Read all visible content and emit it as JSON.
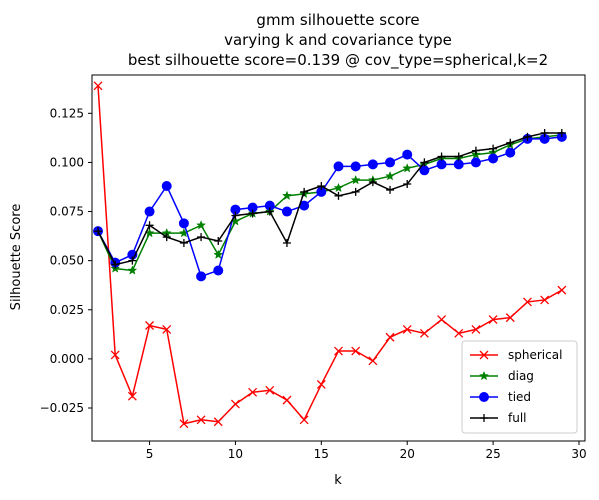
{
  "chart_data": {
    "type": "line",
    "title_lines": [
      "gmm silhouette score",
      "varying k and covariance type",
      "best silhouette score=0.139 @ cov_type=spherical,k=2"
    ],
    "xlabel": "k",
    "ylabel": "Silhouette Score",
    "xlim": [
      1.65,
      30.35
    ],
    "ylim": [
      -0.0418,
      0.1445
    ],
    "xticks": [
      5,
      10,
      15,
      20,
      25,
      30
    ],
    "xtick_labels": [
      "5",
      "10",
      "15",
      "20",
      "25",
      "30"
    ],
    "yticks": [
      -0.025,
      0.0,
      0.025,
      0.05,
      0.075,
      0.1,
      0.125
    ],
    "ytick_labels": [
      "−0.025",
      "0.000",
      "0.025",
      "0.050",
      "0.075",
      "0.100",
      "0.125"
    ],
    "grid": false,
    "legend_position": "lower-right",
    "x": [
      2,
      3,
      4,
      5,
      6,
      7,
      8,
      9,
      10,
      11,
      12,
      13,
      14,
      15,
      16,
      17,
      18,
      19,
      20,
      21,
      22,
      23,
      24,
      25,
      26,
      27,
      28,
      29
    ],
    "series": [
      {
        "name": "spherical",
        "color": "#ff0000",
        "marker": "x",
        "values": [
          0.139,
          0.002,
          -0.019,
          0.017,
          0.015,
          -0.033,
          -0.031,
          -0.032,
          -0.023,
          -0.017,
          -0.016,
          -0.021,
          -0.031,
          -0.013,
          0.004,
          0.004,
          -0.001,
          0.011,
          0.015,
          0.013,
          0.02,
          0.013,
          0.015,
          0.02,
          0.021,
          0.029,
          0.03,
          0.035
        ]
      },
      {
        "name": "diag",
        "color": "#008000",
        "marker": "star",
        "values": [
          0.065,
          0.046,
          0.045,
          0.064,
          0.064,
          0.064,
          0.068,
          0.053,
          0.07,
          0.074,
          0.075,
          0.083,
          0.084,
          0.085,
          0.087,
          0.091,
          0.091,
          0.093,
          0.097,
          0.099,
          0.102,
          0.102,
          0.104,
          0.105,
          0.109,
          0.112,
          0.113,
          0.114
        ]
      },
      {
        "name": "tied",
        "color": "#0000ff",
        "marker": "circle",
        "values": [
          0.065,
          0.049,
          0.053,
          0.075,
          0.088,
          0.069,
          0.042,
          0.045,
          0.076,
          0.077,
          0.078,
          0.075,
          0.078,
          0.085,
          0.098,
          0.098,
          0.099,
          0.1,
          0.104,
          0.096,
          0.099,
          0.099,
          0.1,
          0.102,
          0.105,
          0.112,
          0.112,
          0.113
        ]
      },
      {
        "name": "full",
        "color": "#000000",
        "marker": "plus",
        "values": [
          0.065,
          0.048,
          0.05,
          0.068,
          0.062,
          0.059,
          0.062,
          0.06,
          0.073,
          0.074,
          0.075,
          0.059,
          0.085,
          0.088,
          0.083,
          0.085,
          0.09,
          0.086,
          0.089,
          0.1,
          0.103,
          0.103,
          0.106,
          0.107,
          0.11,
          0.113,
          0.115,
          0.115
        ]
      }
    ]
  }
}
